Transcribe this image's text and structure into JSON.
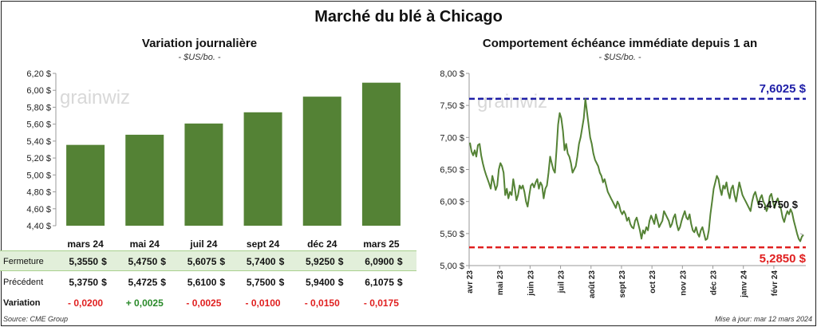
{
  "main_title": "Marché du blé à Chicago",
  "colors": {
    "bar": "#548235",
    "line": "#548235",
    "high": "#1f1fa8",
    "low": "#e02020",
    "positive": "#2a8a2a",
    "negative": "#e02020",
    "close_row_bg": "#e2efda"
  },
  "left": {
    "title": "Variation  journalière",
    "unit": "- $US/bo. -",
    "watermark": "grainwiz",
    "table": {
      "close_label": "Fermeture",
      "prev_label": "Précédent",
      "var_label": "Variation",
      "currency": "$",
      "close": [
        "5,3550",
        "5,4750",
        "5,6075",
        "5,7400",
        "5,9250",
        "6,0900"
      ],
      "prev": [
        "5,3750",
        "5,4725",
        "5,6100",
        "5,7500",
        "5,9400",
        "6,1075"
      ],
      "variation": [
        "- 0,0200",
        "+ 0,0025",
        "- 0,0025",
        "- 0,0100",
        "- 0,0150",
        "- 0,0175"
      ],
      "variation_sign": [
        "neg",
        "pos",
        "neg",
        "neg",
        "neg",
        "neg"
      ]
    }
  },
  "right": {
    "title": "Comportement  échéance immédiate depuis 1 an",
    "unit": "- $US/bo. -",
    "watermark": "grainwiz",
    "high_label": "7,6025 $",
    "low_label": "5,2850 $",
    "last_label": "5,4750 $"
  },
  "footer": {
    "source": "Source: CME Group",
    "updated": "Mise à jour: mar 12 mars 2024"
  },
  "chart_data": [
    {
      "type": "bar",
      "title": "Variation  journalière",
      "subtitle": "- $US/bo. -",
      "categories": [
        "mars 24",
        "mai 24",
        "juil 24",
        "sept 24",
        "déc 24",
        "mars 25"
      ],
      "values": [
        5.355,
        5.475,
        5.6075,
        5.74,
        5.925,
        6.09
      ],
      "ylim": [
        4.4,
        6.2
      ],
      "yticks": [
        "4,40 $",
        "4,60 $",
        "4,80 $",
        "5,00 $",
        "5,20 $",
        "5,40 $",
        "5,60 $",
        "5,80 $",
        "6,00 $",
        "6,20 $"
      ],
      "grid": false
    },
    {
      "type": "line",
      "title": "Comportement  échéance immédiate depuis 1 an",
      "subtitle": "- $US/bo. -",
      "ylim": [
        5.0,
        8.0
      ],
      "yticks": [
        "5,00 $",
        "5,50 $",
        "6,00 $",
        "6,50 $",
        "7,00 $",
        "7,50 $",
        "8,00 $"
      ],
      "xticks": [
        "avr 23",
        "mai 23",
        "juin 23",
        "juil 23",
        "août 23",
        "sept 23",
        "oct 23",
        "nov 23",
        "déc 23",
        "janv 24",
        "févr 24"
      ],
      "series": [
        {
          "values": [
            6.92,
            6.78,
            6.72,
            6.8,
            6.7,
            6.88,
            6.9,
            6.72,
            6.6,
            6.5,
            6.42,
            6.35,
            6.28,
            6.2,
            6.4,
            6.3,
            6.18,
            6.25,
            6.5,
            6.6,
            6.55,
            6.45,
            6.1,
            6.2,
            6.05,
            6.15,
            6.1,
            6.35,
            6.2,
            6.02,
            6.1,
            6.25,
            6.2,
            6.25,
            6.15,
            6.0,
            5.92,
            6.1,
            6.25,
            6.28,
            6.22,
            6.3,
            6.35,
            6.2,
            6.3,
            6.25,
            6.05,
            6.2,
            6.25,
            6.45,
            6.7,
            6.6,
            6.5,
            6.45,
            6.8,
            7.2,
            7.38,
            7.3,
            7.1,
            6.8,
            6.9,
            6.75,
            6.7,
            6.6,
            6.45,
            6.5,
            6.55,
            6.7,
            6.9,
            7.0,
            7.15,
            7.3,
            7.6,
            7.4,
            7.2,
            7.0,
            6.9,
            6.75,
            6.65,
            6.6,
            6.55,
            6.45,
            6.4,
            6.3,
            6.35,
            6.25,
            6.15,
            6.1,
            6.05,
            6.0,
            5.95,
            5.9,
            6.0,
            5.95,
            5.85,
            5.8,
            5.85,
            5.8,
            5.7,
            5.75,
            5.65,
            5.6,
            5.58,
            5.7,
            5.75,
            5.65,
            5.55,
            5.42,
            5.55,
            5.5,
            5.6,
            5.55,
            5.7,
            5.78,
            5.72,
            5.65,
            5.8,
            5.7,
            5.6,
            5.65,
            5.7,
            5.85,
            5.8,
            5.75,
            5.7,
            5.6,
            5.65,
            5.75,
            5.8,
            5.65,
            5.55,
            5.6,
            5.7,
            5.78,
            5.85,
            5.75,
            5.72,
            5.8,
            5.65,
            5.55,
            5.52,
            5.6,
            5.5,
            5.45,
            5.55,
            5.6,
            5.5,
            5.4,
            5.42,
            5.55,
            5.8,
            6.0,
            6.2,
            6.3,
            6.4,
            6.35,
            6.2,
            6.1,
            6.25,
            6.2,
            6.3,
            6.15,
            6.05,
            6.2,
            6.25,
            6.1,
            6.0,
            6.15,
            6.3,
            6.2,
            6.1,
            6.05,
            6.0,
            5.95,
            5.9,
            5.85,
            6.0,
            6.1,
            6.15,
            6.05,
            5.95,
            6.05,
            6.1,
            6.0,
            5.95,
            5.85,
            5.92,
            6.08,
            6.12,
            6.0,
            5.9,
            6.0,
            6.05,
            5.95,
            5.88,
            5.75,
            5.68,
            5.78,
            5.85,
            5.8,
            5.88,
            5.82,
            5.7,
            5.6,
            5.5,
            5.42,
            5.38,
            5.45,
            5.48
          ],
          "x_start": "avr 23",
          "x_end": "mar 24"
        }
      ],
      "reference_lines": [
        {
          "label": "7,6025 $",
          "value": 7.6025,
          "style": "dashed",
          "color": "#1f1fa8"
        },
        {
          "label": "5,2850 $",
          "value": 5.285,
          "style": "dashed",
          "color": "#e02020"
        }
      ],
      "last_value": 5.475,
      "grid": false
    }
  ]
}
